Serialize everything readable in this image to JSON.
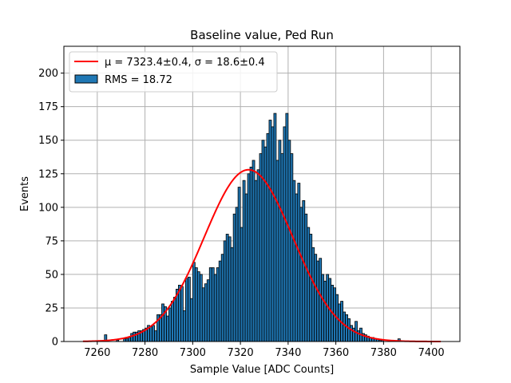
{
  "chart_data": {
    "type": "bar",
    "title": "Baseline value, Ped Run",
    "xlabel": "Sample Value [ADC Counts]",
    "ylabel": "Events",
    "xlim": [
      7246,
      7412
    ],
    "ylim": [
      0,
      220
    ],
    "xticks": [
      7260,
      7280,
      7300,
      7320,
      7340,
      7360,
      7380,
      7400
    ],
    "yticks": [
      0,
      25,
      50,
      75,
      100,
      125,
      150,
      175,
      200
    ],
    "grid": true,
    "legend_position": "top-left",
    "histogram": {
      "name": "RMS = 18.72",
      "bin_width": 1,
      "bin_start": [
        7254,
        7255,
        7256,
        7257,
        7258,
        7259,
        7260,
        7261,
        7262,
        7263,
        7264,
        7265,
        7266,
        7267,
        7268,
        7269,
        7270,
        7271,
        7272,
        7273,
        7274,
        7275,
        7276,
        7277,
        7278,
        7279,
        7280,
        7281,
        7282,
        7283,
        7284,
        7285,
        7286,
        7287,
        7288,
        7289,
        7290,
        7291,
        7292,
        7293,
        7294,
        7295,
        7296,
        7297,
        7298,
        7299,
        7300,
        7301,
        7302,
        7303,
        7304,
        7305,
        7306,
        7307,
        7308,
        7309,
        7310,
        7311,
        7312,
        7313,
        7314,
        7315,
        7316,
        7317,
        7318,
        7319,
        7320,
        7321,
        7322,
        7323,
        7324,
        7325,
        7326,
        7327,
        7328,
        7329,
        7330,
        7331,
        7332,
        7333,
        7334,
        7335,
        7336,
        7337,
        7338,
        7339,
        7340,
        7341,
        7342,
        7343,
        7344,
        7345,
        7346,
        7347,
        7348,
        7349,
        7350,
        7351,
        7352,
        7353,
        7354,
        7355,
        7356,
        7357,
        7358,
        7359,
        7360,
        7361,
        7362,
        7363,
        7364,
        7365,
        7366,
        7367,
        7368,
        7369,
        7370,
        7371,
        7372,
        7373,
        7374,
        7375,
        7376,
        7377,
        7378,
        7379,
        7380,
        7381,
        7382,
        7383,
        7384,
        7385,
        7386,
        7387,
        7388,
        7389,
        7390,
        7391,
        7392,
        7393,
        7394,
        7395,
        7396,
        7397,
        7398,
        7399,
        7400,
        7401,
        7402,
        7403,
        7404
      ],
      "counts": [
        0,
        0,
        0,
        0,
        0,
        0,
        0,
        0,
        0,
        5,
        0,
        0,
        0,
        0,
        1,
        0,
        0,
        2,
        2,
        3,
        6,
        7,
        7,
        8,
        8,
        9,
        10,
        12,
        11,
        12,
        8,
        20,
        20,
        28,
        26,
        19,
        25,
        30,
        33,
        39,
        42,
        41,
        23,
        47,
        48,
        32,
        59,
        55,
        52,
        50,
        40,
        43,
        46,
        55,
        55,
        50,
        55,
        60,
        65,
        75,
        80,
        78,
        70,
        95,
        100,
        115,
        85,
        120,
        110,
        125,
        130,
        135,
        120,
        128,
        140,
        150,
        145,
        155,
        165,
        160,
        170,
        135,
        150,
        140,
        160,
        170,
        150,
        140,
        120,
        110,
        118,
        100,
        105,
        95,
        85,
        80,
        70,
        65,
        60,
        62,
        50,
        45,
        50,
        47,
        42,
        40,
        35,
        28,
        30,
        22,
        20,
        17,
        12,
        10,
        15,
        8,
        10,
        6,
        5,
        4,
        3,
        3,
        2,
        2,
        1,
        1,
        0,
        0,
        0,
        0,
        0,
        0,
        2,
        0,
        0,
        0,
        0,
        0,
        0,
        0,
        0,
        0,
        0,
        0,
        0,
        0,
        0,
        0,
        0,
        0,
        0,
        0,
        0,
        0,
        0
      ]
    },
    "fit": {
      "name": "μ = 7323.4±0.4, σ = 18.6±0.4",
      "model": "gaussian",
      "mu": 7323.4,
      "sigma": 18.6,
      "amplitude": 128,
      "x_range": [
        7254,
        7404
      ]
    },
    "colors": {
      "bar_fill": "#1f77b4",
      "bar_edge": "#000000",
      "fit_line": "#ff0000",
      "grid": "#b0b0b0"
    }
  }
}
